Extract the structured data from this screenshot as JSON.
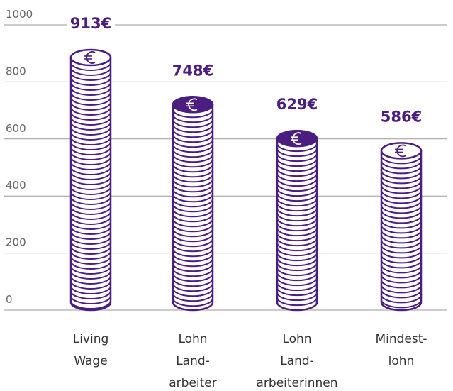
{
  "chart_data": {
    "type": "coin-stack",
    "categories": [
      [
        "Living",
        "Wage"
      ],
      [
        "Lohn",
        "Land-",
        "arbeiter"
      ],
      [
        "Lohn",
        "Land-",
        "arbeiterinnen"
      ],
      [
        "Mindest-",
        "lohn"
      ]
    ],
    "values": [
      913,
      748,
      629,
      586
    ],
    "value_labels": [
      "913€",
      "748€",
      "629€",
      "586€"
    ],
    "color": "#4b1d80",
    "top_colors": [
      "#ffffff",
      "#4b1d80",
      "#4b1d80",
      "#ffffff"
    ],
    "ylim": [
      0,
      1000
    ],
    "yticks": [
      0,
      200,
      400,
      600,
      800,
      1000
    ],
    "grid": true
  }
}
